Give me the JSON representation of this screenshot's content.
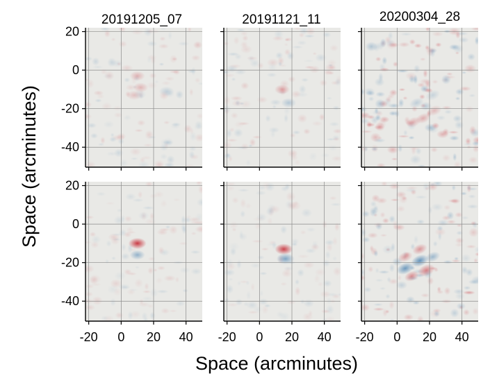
{
  "chart_data": {
    "type": "heatmap",
    "xlabel": "Space (arcminutes)",
    "ylabel": "Space (arcminutes)",
    "xlim": [
      -22,
      50
    ],
    "ylim": [
      -50,
      22
    ],
    "xticks": [
      -20,
      0,
      20,
      40
    ],
    "yticks": [
      20,
      0,
      -20,
      -40
    ],
    "xtick_labels": [
      "-20",
      "0",
      "20",
      "40"
    ],
    "ytick_labels": [
      "20",
      "0",
      "-20",
      "-40"
    ],
    "grid": true,
    "colormap": {
      "positive": "#c8323c",
      "negative": "#2c6fa8",
      "zero": "#e9e9e6"
    },
    "columns": [
      "20191205_07",
      "20191121_11",
      "20200304_28"
    ],
    "panels": [
      {
        "row": 0,
        "col": 0,
        "blobs": [
          {
            "x": 10,
            "y": -3,
            "amp": 0.3
          },
          {
            "x": 12,
            "y": -9,
            "amp": 0.28
          },
          {
            "x": 8,
            "y": -13,
            "amp": 0.22
          },
          {
            "x": 28,
            "y": -11,
            "amp": -0.2
          }
        ],
        "noise": 0.12
      },
      {
        "row": 0,
        "col": 1,
        "blobs": [
          {
            "x": 14,
            "y": -10,
            "amp": 0.38
          },
          {
            "x": 18,
            "y": -17,
            "amp": -0.28
          }
        ],
        "noise": 0.12
      },
      {
        "row": 0,
        "col": 2,
        "blobs": [
          {
            "x": 10,
            "y": -27,
            "amp": 0.3
          },
          {
            "x": 16,
            "y": -25,
            "amp": 0.32
          },
          {
            "x": 23,
            "y": -21,
            "amp": 0.25
          },
          {
            "x": 12,
            "y": -17,
            "amp": -0.22
          },
          {
            "x": 22,
            "y": -13,
            "amp": -0.18
          }
        ],
        "noise": 0.24
      },
      {
        "row": 1,
        "col": 0,
        "blobs": [
          {
            "x": 10,
            "y": -10,
            "amp": 0.95
          },
          {
            "x": 10,
            "y": -16,
            "amp": -0.45
          }
        ],
        "noise": 0.1
      },
      {
        "row": 1,
        "col": 1,
        "blobs": [
          {
            "x": 15,
            "y": -13,
            "amp": 0.9
          },
          {
            "x": 16,
            "y": -18,
            "amp": -0.55
          }
        ],
        "noise": 0.1
      },
      {
        "row": 1,
        "col": 2,
        "blobs": [
          {
            "x": 5,
            "y": -17,
            "amp": 0.4
          },
          {
            "x": 14,
            "y": -13,
            "amp": 0.45
          },
          {
            "x": 5,
            "y": -23,
            "amp": -0.65
          },
          {
            "x": 14,
            "y": -19,
            "amp": -0.7
          },
          {
            "x": 22,
            "y": -17,
            "amp": -0.4
          },
          {
            "x": 9,
            "y": -27,
            "amp": 0.5
          },
          {
            "x": 18,
            "y": -24,
            "amp": 0.55
          }
        ],
        "noise": 0.2
      }
    ]
  }
}
